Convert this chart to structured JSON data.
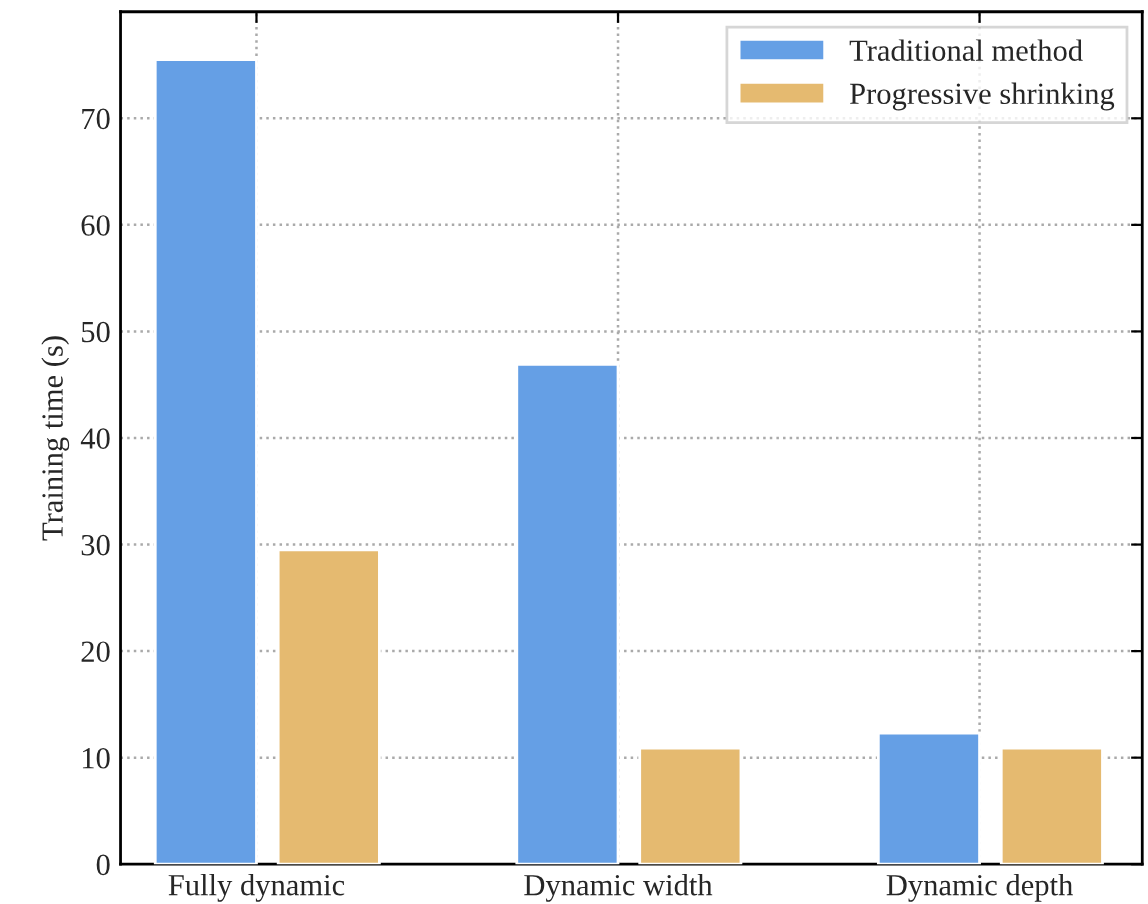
{
  "chart_data": {
    "type": "bar",
    "ylabel": "Training time (s)",
    "categories": [
      "Fully dynamic",
      "Dynamic width",
      "Dynamic depth"
    ],
    "series": [
      {
        "name": "Traditional method",
        "color": "#659fe5",
        "values": [
          75.5,
          46.9,
          12.3
        ]
      },
      {
        "name": "Progressive shrinking",
        "color": "#e5ba70",
        "values": [
          29.5,
          10.9,
          10.9
        ]
      }
    ],
    "ylim": [
      0,
      80
    ],
    "yticks": [
      0,
      10,
      20,
      30,
      40,
      50,
      60,
      70
    ],
    "grid": true,
    "legend": "top right"
  }
}
